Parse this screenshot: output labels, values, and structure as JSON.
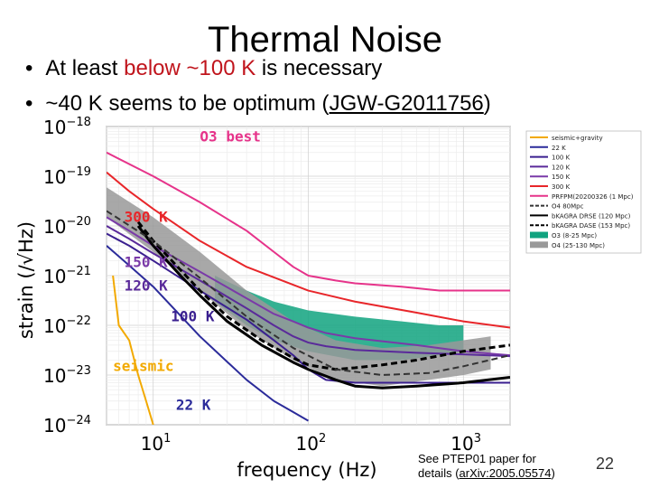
{
  "slide": {
    "title": "Thermal Noise",
    "bullet1": {
      "prefix": "At least ",
      "highlight": "below ~100 K",
      "suffix": " is necessary"
    },
    "bullet2": {
      "prefix": "~40 K seems to be optimum (",
      "link": "JGW-G2011756",
      "suffix": ")"
    },
    "footnote": {
      "line1": "See PTEP01 paper for",
      "line2_prefix": "details (",
      "link": "arXiv:2005.05574",
      "line2_suffix": ")"
    },
    "number": "22",
    "colors": {
      "highlight": "#c0141c"
    }
  },
  "chart_data": {
    "type": "line",
    "xscale": "log",
    "yscale": "log",
    "xlim": [
      5,
      2000
    ],
    "ylim": [
      1e-24,
      1e-18
    ],
    "xlabel": "frequency (Hz)",
    "ylabel": "strain (/√Hz)",
    "x_ticks": [
      {
        "base": "10",
        "exp": "1"
      },
      {
        "base": "10",
        "exp": "2"
      },
      {
        "base": "10",
        "exp": "3"
      }
    ],
    "y_ticks": [
      {
        "base": "10",
        "exp": "−18"
      },
      {
        "base": "10",
        "exp": "−19"
      },
      {
        "base": "10",
        "exp": "−20"
      },
      {
        "base": "10",
        "exp": "−21"
      },
      {
        "base": "10",
        "exp": "−22"
      },
      {
        "base": "10",
        "exp": "−23"
      },
      {
        "base": "10",
        "exp": "−24"
      }
    ],
    "grid": true,
    "legend_position": "right",
    "legend": [
      {
        "name": "seismic+gravity",
        "color": "#f2a900",
        "style": "solid"
      },
      {
        "name": "22 K",
        "color": "#2b2b9a",
        "style": "solid"
      },
      {
        "name": "100 K",
        "color": "#3a1f8f",
        "style": "solid"
      },
      {
        "name": "120 K",
        "color": "#5a2a9a",
        "style": "solid"
      },
      {
        "name": "150 K",
        "color": "#7a3aa8",
        "style": "solid"
      },
      {
        "name": "300 K",
        "color": "#e8262a",
        "style": "solid"
      },
      {
        "name": "PRFPM(20200326 (1 Mpc)",
        "color": "#e6338a",
        "style": "solid"
      },
      {
        "name": "O4 80Mpc",
        "color": "#333333",
        "style": "dashed"
      },
      {
        "name": "bKAGRA DRSE (120 Mpc)",
        "color": "#000000",
        "style": "solid"
      },
      {
        "name": "bKAGRA DASE (153 Mpc)",
        "color": "#000000",
        "style": "dashed"
      },
      {
        "name": "O3 (8-25 Mpc)",
        "color": "#10a37f",
        "style": "band"
      },
      {
        "name": "O4 (25-130 Mpc)",
        "color": "#999999",
        "style": "band"
      }
    ],
    "annotations": [
      {
        "text": "O3 best",
        "color": "#e6338a",
        "x": 20,
        "y": 5e-19
      },
      {
        "text": "300 K",
        "color": "#e8262a",
        "x": 6.5,
        "y": 1.2e-20
      },
      {
        "text": "150 K",
        "color": "#7a3aa8",
        "x": 6.5,
        "y": 1.5e-21
      },
      {
        "text": "120 K",
        "color": "#5a2a9a",
        "x": 6.5,
        "y": 5e-22
      },
      {
        "text": "100 K",
        "color": "#3a1f8f",
        "x": 13,
        "y": 1.2e-22
      },
      {
        "text": "seismic",
        "color": "#f2a900",
        "x": 5.5,
        "y": 1.2e-23
      },
      {
        "text": "22 K",
        "color": "#2b2b9a",
        "x": 14,
        "y": 2e-24
      }
    ],
    "series": [
      {
        "name": "seismic+gravity",
        "color": "#f2a900",
        "x": [
          5.5,
          6,
          7,
          8,
          9,
          10
        ],
        "y": [
          1e-21,
          1e-22,
          5e-23,
          1e-23,
          3e-24,
          1e-24
        ]
      },
      {
        "name": "300 K",
        "color": "#e8262a",
        "x": [
          5,
          7,
          10,
          20,
          40,
          100,
          200,
          500,
          1000,
          2000
        ],
        "y": [
          1.2e-19,
          5e-20,
          2.2e-20,
          5e-21,
          1.5e-21,
          5e-22,
          3e-22,
          1.8e-22,
          1.2e-22,
          9e-23
        ]
      },
      {
        "name": "150 K",
        "color": "#7a3aa8",
        "x": [
          5,
          7,
          10,
          20,
          40,
          60,
          80,
          100,
          130,
          200,
          500,
          1000,
          2000
        ],
        "y": [
          1.5e-20,
          8e-21,
          4e-21,
          1.2e-21,
          3.5e-22,
          1.7e-22,
          1.2e-22,
          9e-23,
          7e-23,
          5.5e-23,
          4e-23,
          3e-23,
          2.5e-23
        ]
      },
      {
        "name": "120 K",
        "color": "#5a2a9a",
        "x": [
          5,
          7,
          10,
          20,
          40,
          60,
          80,
          100,
          130,
          200,
          500,
          1000,
          2000
        ],
        "y": [
          1e-20,
          5.5e-21,
          2.8e-21,
          8e-22,
          2.2e-22,
          1e-22,
          6e-23,
          4.5e-23,
          3.8e-23,
          3.2e-23,
          2.8e-23,
          2.6e-23,
          2.4e-23
        ]
      },
      {
        "name": "100 K",
        "color": "#3a1f8f",
        "x": [
          5,
          7,
          10,
          20,
          40,
          60,
          80,
          100,
          130,
          200,
          500,
          1000,
          2000
        ],
        "y": [
          7e-21,
          4e-21,
          2e-21,
          5e-22,
          1.3e-22,
          5e-23,
          2.5e-23,
          1.3e-23,
          8e-24,
          7e-24,
          7e-24,
          7e-24,
          7e-24
        ]
      },
      {
        "name": "22 K",
        "color": "#2b2b9a",
        "x": [
          5,
          7,
          10,
          20,
          40,
          60,
          80,
          100
        ],
        "y": [
          4e-21,
          1.6e-21,
          6e-22,
          6e-23,
          8e-24,
          3e-24,
          1.8e-24,
          1.2e-24
        ]
      },
      {
        "name": "PRFPM(20200326 (1 Mpc)",
        "color": "#e6338a",
        "x": [
          5,
          10,
          20,
          40,
          60,
          80,
          100,
          150,
          200,
          400,
          700,
          1000,
          2000
        ],
        "y": [
          3e-19,
          1e-19,
          3e-20,
          8e-21,
          3e-21,
          1.5e-21,
          1e-21,
          8e-22,
          7e-22,
          6e-22,
          5e-22,
          5e-22,
          5e-22
        ]
      },
      {
        "name": "bKAGRA DRSE (120 Mpc)",
        "color": "#000000",
        "x": [
          8,
          10,
          15,
          20,
          30,
          50,
          80,
          100,
          150,
          200,
          300,
          500,
          1000,
          2000
        ],
        "y": [
          1e-20,
          4e-21,
          1e-21,
          4e-22,
          1.2e-22,
          4e-23,
          1.8e-23,
          1.3e-23,
          8e-24,
          6e-24,
          5.5e-24,
          6e-24,
          7e-24,
          9e-24
        ]
      },
      {
        "name": "bKAGRA DASE (153 Mpc)",
        "color": "#000000",
        "x": [
          8,
          10,
          15,
          20,
          30,
          50,
          80,
          100,
          150,
          200,
          300,
          500,
          1000,
          2000
        ],
        "y": [
          1.2e-20,
          5e-21,
          1.3e-21,
          5e-22,
          1.5e-22,
          5e-23,
          2.2e-23,
          1.6e-23,
          1.3e-23,
          1.4e-23,
          1.6e-23,
          2e-23,
          3e-23,
          4e-23
        ]
      },
      {
        "name": "O4 80Mpc",
        "color": "#333333",
        "x": [
          5,
          10,
          20,
          40,
          80,
          150,
          300,
          600,
          1000,
          2000
        ],
        "y": [
          2e-20,
          5e-21,
          9e-22,
          1.5e-22,
          3.5e-23,
          1.3e-23,
          1e-23,
          1.1e-23,
          1.5e-23,
          2.5e-23
        ]
      }
    ],
    "bands": [
      {
        "name": "O3 (8-25 Mpc)",
        "color": "#10a37f",
        "x": [
          25,
          40,
          60,
          100,
          200,
          400,
          700,
          1000
        ],
        "y_low": [
          3e-22,
          1e-22,
          5e-23,
          3e-23,
          2e-23,
          2e-23,
          2.5e-23,
          3e-23
        ],
        "y_high": [
          1e-21,
          5e-22,
          3e-22,
          2e-22,
          1.5e-22,
          1.2e-22,
          1e-22,
          1e-22
        ]
      },
      {
        "name": "O4 (25-130 Mpc)",
        "color": "#999999",
        "x": [
          5,
          10,
          20,
          40,
          80,
          150,
          300,
          600,
          1000,
          1500
        ],
        "y_low": [
          1.5e-20,
          3e-21,
          5e-22,
          8e-23,
          2e-23,
          8e-24,
          6e-24,
          8e-24,
          1e-23,
          1.3e-23
        ],
        "y_high": [
          6e-20,
          1.5e-20,
          3e-21,
          5e-22,
          1.2e-22,
          5e-23,
          3.5e-23,
          4e-23,
          5e-23,
          6e-23
        ]
      }
    ]
  }
}
